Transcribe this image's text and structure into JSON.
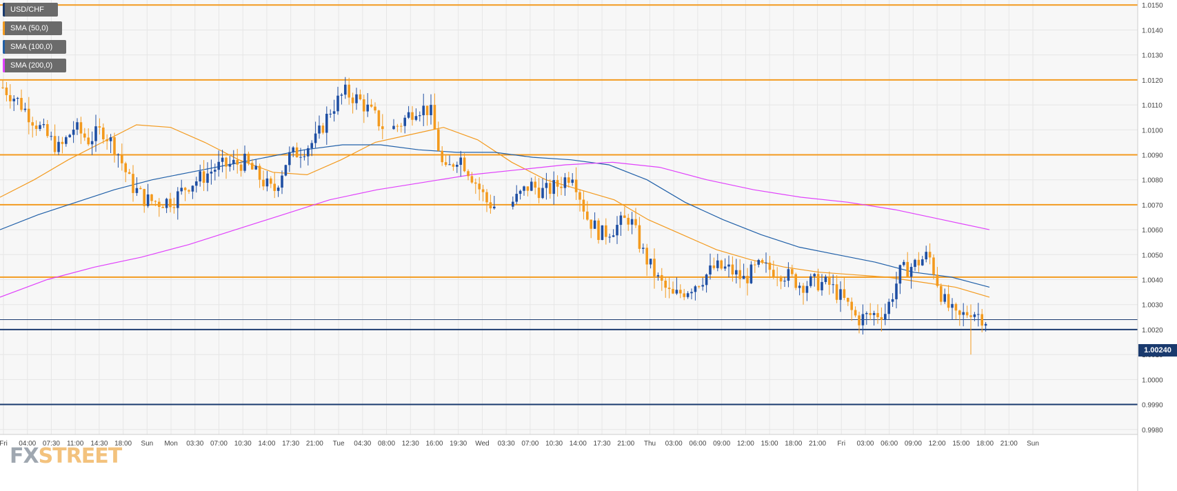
{
  "symbol": "USD/CHF",
  "legend": [
    {
      "label": "USD/CHF",
      "color": "#1a3a6e"
    },
    {
      "label": "SMA (50,0)",
      "color": "#f39a1e"
    },
    {
      "label": "SMA (100,0)",
      "color": "#1f5fa8"
    },
    {
      "label": "SMA (200,0)",
      "color": "#e040fb"
    }
  ],
  "logo": {
    "part1": "FX",
    "part2": "STREET"
  },
  "current_price_label": "1.00240",
  "colors": {
    "bull": "#1f4fa3",
    "bear": "#f39a1e",
    "grid": "#e6e6e6",
    "bg": "#f7f7f7",
    "resistance": "#f39a1e",
    "support": "#1a3a6e",
    "sma50": "#f39a1e",
    "sma100": "#1f5fa8",
    "sma200": "#e040fb"
  },
  "chart_data": {
    "type": "candlestick",
    "title": "",
    "y_range": [
      0.9978,
      1.0152
    ],
    "y_ticks": [
      "1.0150",
      "1.0140",
      "1.0130",
      "1.0120",
      "1.0110",
      "1.0100",
      "1.0090",
      "1.0080",
      "1.0070",
      "1.0060",
      "1.0050",
      "1.0040",
      "1.0030",
      "1.0020",
      "1.0010",
      "1.0000",
      "0.9990",
      "0.9980"
    ],
    "x_ticks": [
      "Fri",
      "04:00",
      "07:30",
      "11:00",
      "14:30",
      "18:00",
      "Sun",
      "Mon",
      "03:30",
      "07:00",
      "10:30",
      "14:00",
      "17:30",
      "21:00",
      "Tue",
      "04:30",
      "08:00",
      "12:30",
      "16:00",
      "19:30",
      "Wed",
      "03:30",
      "07:00",
      "10:30",
      "14:00",
      "17:30",
      "21:00",
      "Thu",
      "03:00",
      "06:00",
      "09:00",
      "12:00",
      "15:00",
      "18:00",
      "21:00",
      "Fri",
      "03:00",
      "06:00",
      "09:00",
      "12:00",
      "15:00",
      "18:00",
      "21:00",
      "Sun"
    ],
    "horizontal_levels": [
      {
        "value": 1.015,
        "kind": "resistance"
      },
      {
        "value": 1.012,
        "kind": "resistance"
      },
      {
        "value": 1.009,
        "kind": "resistance"
      },
      {
        "value": 1.007,
        "kind": "resistance"
      },
      {
        "value": 1.0041,
        "kind": "resistance"
      },
      {
        "value": 1.002,
        "kind": "support"
      },
      {
        "value": 0.999,
        "kind": "support"
      },
      {
        "value": 1.0024,
        "kind": "current"
      }
    ],
    "close_path": [
      1.0117,
      1.0112,
      1.0105,
      1.0098,
      1.0092,
      1.0101,
      1.0096,
      1.01,
      1.0092,
      1.0078,
      1.0072,
      1.0071,
      1.0072,
      1.0078,
      1.0081,
      1.0085,
      1.0086,
      1.0087,
      1.0081,
      1.0075,
      1.0089,
      1.0092,
      1.0096,
      1.0108,
      1.0115,
      1.0112,
      1.0106,
      1.0099,
      1.0103,
      1.0109,
      1.0108,
      1.0082,
      1.009,
      1.0081,
      1.0071,
      1.0068,
      1.0072,
      1.0078,
      1.0075,
      1.0078,
      1.0083,
      1.0065,
      1.0058,
      1.0061,
      1.0065,
      1.005,
      1.004,
      1.0033,
      1.0036,
      1.004,
      1.0045,
      1.0044,
      1.004,
      1.0045,
      1.0044,
      1.0042,
      1.0038,
      1.0039,
      1.0038,
      1.0032,
      1.0024,
      1.0026,
      1.0027,
      1.0043,
      1.0046,
      1.005,
      1.0032,
      1.0024,
      1.0028,
      1.0024
    ],
    "series": [
      {
        "name": "SMA (50,0)",
        "values": [
          1.0073,
          1.008,
          1.0088,
          1.0095,
          1.0102,
          1.0101,
          1.0095,
          1.0088,
          1.0083,
          1.0082,
          1.0088,
          1.0095,
          1.0098,
          1.0101,
          1.0096,
          1.0087,
          1.008,
          1.0076,
          1.0072,
          1.0064,
          1.0058,
          1.0052,
          1.0048,
          1.0045,
          1.0043,
          1.0042,
          1.0041,
          1.0039,
          1.0037,
          1.0033
        ]
      },
      {
        "name": "SMA (100,0)",
        "values": [
          1.006,
          1.0066,
          1.0071,
          1.0076,
          1.008,
          1.0083,
          1.0086,
          1.0089,
          1.0092,
          1.0094,
          1.0094,
          1.0092,
          1.0091,
          1.0091,
          1.0089,
          1.0088,
          1.0086,
          1.008,
          1.0071,
          1.0064,
          1.0058,
          1.0053,
          1.005,
          1.0047,
          1.0043,
          1.0041,
          1.0037
        ]
      },
      {
        "name": "SMA (200,0)",
        "values": [
          1.0033,
          1.004,
          1.0045,
          1.0049,
          1.0054,
          1.006,
          1.0066,
          1.0072,
          1.0076,
          1.0079,
          1.0082,
          1.0084,
          1.0086,
          1.0087,
          1.0085,
          1.008,
          1.0076,
          1.0073,
          1.0071,
          1.0068,
          1.0064,
          1.006
        ]
      }
    ]
  }
}
